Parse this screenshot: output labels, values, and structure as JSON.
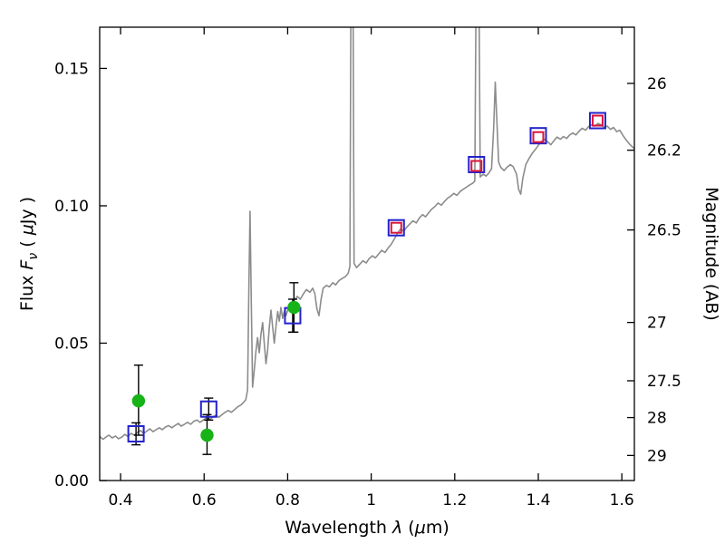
{
  "chart_data": {
    "type": "line",
    "title": "",
    "xlabel_parts": [
      {
        "t": "Wavelength  ",
        "style": ""
      },
      {
        "t": "λ",
        "style": "italic"
      },
      {
        "t": " (",
        "style": ""
      },
      {
        "t": "μ",
        "style": "italic"
      },
      {
        "t": "m)",
        "style": ""
      }
    ],
    "ylabel_left_parts": [
      {
        "t": "Flux  ",
        "style": ""
      },
      {
        "t": "F",
        "style": "italic"
      },
      {
        "t": "ν",
        "style": "sub italic"
      },
      {
        "t": "  ( ",
        "style": ""
      },
      {
        "t": "μ",
        "style": "italic"
      },
      {
        "t": "Jy )",
        "style": ""
      }
    ],
    "ylabel_right": "Magnitude (AB)",
    "xlim": [
      0.35,
      1.63
    ],
    "ylim": [
      0.0,
      0.165
    ],
    "grid": false,
    "legend": "none",
    "colors": {
      "spectrum": "#8c8c8c",
      "green": "#17b317",
      "blue": "#2222cc",
      "red": "#dc143c",
      "errorbar": "#000000",
      "frame": "#000000",
      "text": "#000000",
      "background": "#ffffff"
    },
    "x_ticks": [
      {
        "label": "0.4",
        "value": 0.4
      },
      {
        "label": "0.6",
        "value": 0.6
      },
      {
        "label": "0.8",
        "value": 0.8
      },
      {
        "label": "1",
        "value": 1.0
      },
      {
        "label": "1.2",
        "value": 1.2
      },
      {
        "label": "1.4",
        "value": 1.4
      },
      {
        "label": "1.6",
        "value": 1.6
      }
    ],
    "y_ticks_left": [
      {
        "label": "0.00",
        "value": 0.0
      },
      {
        "label": "0.05",
        "value": 0.05
      },
      {
        "label": "0.10",
        "value": 0.1
      },
      {
        "label": "0.15",
        "value": 0.15
      }
    ],
    "y_ticks_right": [
      {
        "label": "26",
        "mag": 26.0,
        "flux": 0.14454
      },
      {
        "label": "26.2",
        "mag": 26.2,
        "flux": 0.12023
      },
      {
        "label": "26.5",
        "mag": 26.5,
        "flux": 0.0912
      },
      {
        "label": "27",
        "mag": 27.0,
        "flux": 0.05754
      },
      {
        "label": "27.5",
        "mag": 27.5,
        "flux": 0.03631
      },
      {
        "label": "28",
        "mag": 28.0,
        "flux": 0.02291
      },
      {
        "label": "29",
        "mag": 29.0,
        "flux": 0.00912
      }
    ],
    "series": [
      {
        "name": "model-spectrum",
        "type": "line",
        "color": "#8c8c8c",
        "points": [
          [
            0.35,
            0.016
          ],
          [
            0.358,
            0.015
          ],
          [
            0.365,
            0.0158
          ],
          [
            0.372,
            0.0165
          ],
          [
            0.38,
            0.0155
          ],
          [
            0.388,
            0.0162
          ],
          [
            0.395,
            0.0152
          ],
          [
            0.403,
            0.0158
          ],
          [
            0.41,
            0.0168
          ],
          [
            0.418,
            0.016
          ],
          [
            0.425,
            0.0172
          ],
          [
            0.433,
            0.0165
          ],
          [
            0.44,
            0.0175
          ],
          [
            0.448,
            0.0182
          ],
          [
            0.455,
            0.0172
          ],
          [
            0.463,
            0.018
          ],
          [
            0.47,
            0.0188
          ],
          [
            0.478,
            0.0178
          ],
          [
            0.485,
            0.0185
          ],
          [
            0.493,
            0.0192
          ],
          [
            0.5,
            0.0185
          ],
          [
            0.508,
            0.0195
          ],
          [
            0.515,
            0.02
          ],
          [
            0.523,
            0.0192
          ],
          [
            0.53,
            0.02
          ],
          [
            0.538,
            0.0208
          ],
          [
            0.545,
            0.0198
          ],
          [
            0.553,
            0.0205
          ],
          [
            0.56,
            0.0212
          ],
          [
            0.568,
            0.0205
          ],
          [
            0.575,
            0.0215
          ],
          [
            0.583,
            0.022
          ],
          [
            0.59,
            0.0212
          ],
          [
            0.598,
            0.022
          ],
          [
            0.605,
            0.0228
          ],
          [
            0.613,
            0.0222
          ],
          [
            0.62,
            0.023
          ],
          [
            0.628,
            0.0238
          ],
          [
            0.635,
            0.023
          ],
          [
            0.643,
            0.024
          ],
          [
            0.65,
            0.0248
          ],
          [
            0.658,
            0.0255
          ],
          [
            0.665,
            0.0248
          ],
          [
            0.673,
            0.0258
          ],
          [
            0.68,
            0.0268
          ],
          [
            0.688,
            0.0275
          ],
          [
            0.695,
            0.0285
          ],
          [
            0.7,
            0.0295
          ],
          [
            0.704,
            0.033
          ],
          [
            0.707,
            0.07
          ],
          [
            0.71,
            0.098
          ],
          [
            0.713,
            0.065
          ],
          [
            0.716,
            0.034
          ],
          [
            0.72,
            0.04
          ],
          [
            0.724,
            0.047
          ],
          [
            0.728,
            0.052
          ],
          [
            0.732,
            0.0465
          ],
          [
            0.736,
            0.053
          ],
          [
            0.74,
            0.0575
          ],
          [
            0.744,
            0.05
          ],
          [
            0.748,
            0.0425
          ],
          [
            0.752,
            0.0475
          ],
          [
            0.756,
            0.0555
          ],
          [
            0.76,
            0.062
          ],
          [
            0.764,
            0.056
          ],
          [
            0.768,
            0.05
          ],
          [
            0.772,
            0.056
          ],
          [
            0.776,
            0.0615
          ],
          [
            0.78,
            0.058
          ],
          [
            0.784,
            0.063
          ],
          [
            0.788,
            0.059
          ],
          [
            0.792,
            0.0615
          ],
          [
            0.796,
            0.06
          ],
          [
            0.8,
            0.062
          ],
          [
            0.808,
            0.064
          ],
          [
            0.815,
            0.0655
          ],
          [
            0.823,
            0.067
          ],
          [
            0.83,
            0.066
          ],
          [
            0.838,
            0.068
          ],
          [
            0.845,
            0.0695
          ],
          [
            0.853,
            0.0685
          ],
          [
            0.86,
            0.07
          ],
          [
            0.865,
            0.068
          ],
          [
            0.87,
            0.0625
          ],
          [
            0.875,
            0.06
          ],
          [
            0.88,
            0.066
          ],
          [
            0.885,
            0.07
          ],
          [
            0.893,
            0.071
          ],
          [
            0.9,
            0.0705
          ],
          [
            0.908,
            0.072
          ],
          [
            0.915,
            0.0712
          ],
          [
            0.923,
            0.0728
          ],
          [
            0.93,
            0.0735
          ],
          [
            0.938,
            0.0742
          ],
          [
            0.945,
            0.0755
          ],
          [
            0.949,
            0.078
          ],
          [
            0.952,
            0.2
          ],
          [
            0.956,
            0.2
          ],
          [
            0.959,
            0.079
          ],
          [
            0.965,
            0.0775
          ],
          [
            0.973,
            0.0788
          ],
          [
            0.98,
            0.08
          ],
          [
            0.988,
            0.0792
          ],
          [
            0.995,
            0.0808
          ],
          [
            1.003,
            0.0818
          ],
          [
            1.01,
            0.081
          ],
          [
            1.018,
            0.0825
          ],
          [
            1.025,
            0.0838
          ],
          [
            1.033,
            0.083
          ],
          [
            1.04,
            0.0845
          ],
          [
            1.048,
            0.086
          ],
          [
            1.055,
            0.0878
          ],
          [
            1.063,
            0.09
          ],
          [
            1.07,
            0.0915
          ],
          [
            1.078,
            0.0908
          ],
          [
            1.085,
            0.0922
          ],
          [
            1.093,
            0.0935
          ],
          [
            1.1,
            0.0945
          ],
          [
            1.108,
            0.0938
          ],
          [
            1.115,
            0.0955
          ],
          [
            1.123,
            0.0968
          ],
          [
            1.13,
            0.096
          ],
          [
            1.138,
            0.0975
          ],
          [
            1.145,
            0.0988
          ],
          [
            1.153,
            0.0998
          ],
          [
            1.16,
            0.101
          ],
          [
            1.168,
            0.1002
          ],
          [
            1.175,
            0.1015
          ],
          [
            1.183,
            0.1028
          ],
          [
            1.19,
            0.1035
          ],
          [
            1.198,
            0.1045
          ],
          [
            1.205,
            0.1038
          ],
          [
            1.213,
            0.1052
          ],
          [
            1.22,
            0.106
          ],
          [
            1.228,
            0.1068
          ],
          [
            1.235,
            0.1075
          ],
          [
            1.243,
            0.1082
          ],
          [
            1.248,
            0.109
          ],
          [
            1.252,
            0.2
          ],
          [
            1.257,
            0.2
          ],
          [
            1.261,
            0.1105
          ],
          [
            1.268,
            0.1115
          ],
          [
            1.275,
            0.1108
          ],
          [
            1.282,
            0.112
          ],
          [
            1.288,
            0.1135
          ],
          [
            1.293,
            0.128
          ],
          [
            1.297,
            0.145
          ],
          [
            1.301,
            0.13
          ],
          [
            1.305,
            0.116
          ],
          [
            1.31,
            0.114
          ],
          [
            1.318,
            0.1128
          ],
          [
            1.325,
            0.114
          ],
          [
            1.333,
            0.115
          ],
          [
            1.34,
            0.1142
          ],
          [
            1.348,
            0.1115
          ],
          [
            1.353,
            0.106
          ],
          [
            1.358,
            0.1042
          ],
          [
            1.363,
            0.11
          ],
          [
            1.37,
            0.115
          ],
          [
            1.378,
            0.1172
          ],
          [
            1.385,
            0.119
          ],
          [
            1.393,
            0.1205
          ],
          [
            1.4,
            0.122
          ],
          [
            1.408,
            0.1235
          ],
          [
            1.415,
            0.1242
          ],
          [
            1.423,
            0.1232
          ],
          [
            1.43,
            0.1222
          ],
          [
            1.438,
            0.1238
          ],
          [
            1.445,
            0.125
          ],
          [
            1.453,
            0.1242
          ],
          [
            1.46,
            0.1252
          ],
          [
            1.468,
            0.1245
          ],
          [
            1.475,
            0.1258
          ],
          [
            1.483,
            0.1265
          ],
          [
            1.49,
            0.1258
          ],
          [
            1.498,
            0.1272
          ],
          [
            1.505,
            0.1282
          ],
          [
            1.513,
            0.1275
          ],
          [
            1.52,
            0.1288
          ],
          [
            1.528,
            0.1295
          ],
          [
            1.535,
            0.129
          ],
          [
            1.543,
            0.13
          ],
          [
            1.55,
            0.1295
          ],
          [
            1.558,
            0.1285
          ],
          [
            1.565,
            0.129
          ],
          [
            1.573,
            0.1278
          ],
          [
            1.58,
            0.1285
          ],
          [
            1.588,
            0.127
          ],
          [
            1.595,
            0.1275
          ],
          [
            1.603,
            0.1255
          ],
          [
            1.61,
            0.124
          ],
          [
            1.618,
            0.1225
          ],
          [
            1.625,
            0.1215
          ],
          [
            1.63,
            0.1208
          ]
        ]
      },
      {
        "name": "photometry-green-circles",
        "type": "scatter",
        "marker": "filled-circle",
        "color": "#17b317",
        "points": [
          {
            "x": 0.443,
            "y": 0.029,
            "err_plus": 0.013,
            "err_minus": 0.0125
          },
          {
            "x": 0.607,
            "y": 0.0165,
            "err_plus": 0.0075,
            "err_minus": 0.007
          },
          {
            "x": 0.815,
            "y": 0.063,
            "err_plus": 0.009,
            "err_minus": 0.009
          }
        ]
      },
      {
        "name": "photometry-blue-squares",
        "type": "scatter",
        "marker": "open-square",
        "color": "#2222cc",
        "points": [
          {
            "x": 0.437,
            "y": 0.017,
            "err_plus": 0.004,
            "err_minus": 0.004
          },
          {
            "x": 0.611,
            "y": 0.026,
            "err_plus": 0.004,
            "err_minus": 0.004
          },
          {
            "x": 0.812,
            "y": 0.06,
            "err_plus": 0.006,
            "err_minus": 0.006
          },
          {
            "x": 1.06,
            "y": 0.092
          },
          {
            "x": 1.252,
            "y": 0.115
          },
          {
            "x": 1.4,
            "y": 0.1255
          },
          {
            "x": 1.542,
            "y": 0.131
          }
        ]
      },
      {
        "name": "photometry-red-squares",
        "type": "scatter",
        "marker": "open-square",
        "color": "#dc143c",
        "points": [
          {
            "x": 1.06,
            "y": 0.092
          },
          {
            "x": 1.252,
            "y": 0.1145
          },
          {
            "x": 1.4,
            "y": 0.125
          },
          {
            "x": 1.542,
            "y": 0.131
          }
        ]
      }
    ]
  }
}
